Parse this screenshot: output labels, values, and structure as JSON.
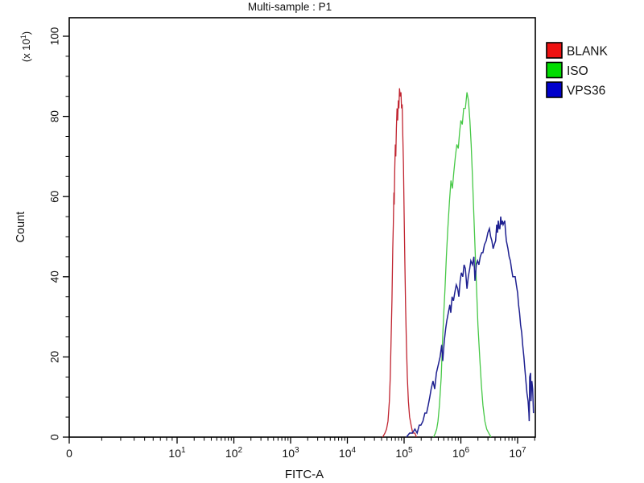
{
  "title": "Multi-sample : P1",
  "chart_data": {
    "type": "line",
    "subtype": "flow-cytometry-overlay-histogram",
    "title": "Multi-sample : P1",
    "xlabel": "FITC-A",
    "ylabel": "Count",
    "y_unit_multiplier": {
      "prefix": "(x 10",
      "exp": "1",
      "suffix": ")"
    },
    "x_scale": "log",
    "ylim": [
      0,
      100
    ],
    "grid": false,
    "legend_position": "outside-top-right",
    "x_ticks": [
      {
        "label": "0",
        "value": 0
      },
      {
        "base": "10",
        "exp": "1",
        "value": 10
      },
      {
        "base": "10",
        "exp": "2",
        "value": 100
      },
      {
        "base": "10",
        "exp": "3",
        "value": 1000
      },
      {
        "base": "10",
        "exp": "4",
        "value": 10000
      },
      {
        "base": "10",
        "exp": "5",
        "value": 100000
      },
      {
        "base": "10",
        "exp": "6",
        "value": 1000000
      },
      {
        "base": "10",
        "exp": "7",
        "value": 10000000
      }
    ],
    "y_ticks": [
      {
        "label": "0",
        "value": 0
      },
      {
        "label": "20",
        "value": 20
      },
      {
        "label": "40",
        "value": 40
      },
      {
        "label": "60",
        "value": 60
      },
      {
        "label": "80",
        "value": 80
      },
      {
        "label": "100",
        "value": 100
      }
    ],
    "legend": [
      {
        "label": "BLANK",
        "color": "#ee1111"
      },
      {
        "label": "ISO",
        "color": "#00dd00"
      },
      {
        "label": "VPS36",
        "color": "#0000cc"
      }
    ],
    "series": [
      {
        "name": "BLANK",
        "color": "#c02430",
        "stroke_width": 1.3,
        "peak": {
          "x": 85000,
          "count": 87
        },
        "points": [
          [
            42000,
            0
          ],
          [
            46000,
            1
          ],
          [
            49000,
            2
          ],
          [
            52000,
            4
          ],
          [
            55000,
            9
          ],
          [
            57000,
            15
          ],
          [
            59000,
            24
          ],
          [
            61000,
            34
          ],
          [
            63000,
            47
          ],
          [
            64500,
            53
          ],
          [
            66000,
            61
          ],
          [
            67000,
            58
          ],
          [
            68500,
            67
          ],
          [
            70000,
            73
          ],
          [
            71500,
            70
          ],
          [
            73000,
            77
          ],
          [
            75000,
            82
          ],
          [
            77000,
            79
          ],
          [
            79000,
            84
          ],
          [
            81000,
            82
          ],
          [
            83000,
            87
          ],
          [
            85500,
            85
          ],
          [
            88000,
            86
          ],
          [
            90000,
            82
          ],
          [
            92500,
            83
          ],
          [
            95000,
            75
          ],
          [
            97500,
            68
          ],
          [
            100000,
            56
          ],
          [
            103000,
            44
          ],
          [
            106000,
            33
          ],
          [
            110000,
            23
          ],
          [
            114000,
            15
          ],
          [
            119000,
            9
          ],
          [
            125000,
            5
          ],
          [
            133000,
            3
          ],
          [
            142000,
            1
          ],
          [
            155000,
            1
          ],
          [
            165000,
            0
          ]
        ]
      },
      {
        "name": "ISO",
        "color": "#46c846",
        "stroke_width": 1.3,
        "peak": {
          "x": 1280000,
          "count": 86
        },
        "points": [
          [
            330000,
            0
          ],
          [
            355000,
            1
          ],
          [
            375000,
            2
          ],
          [
            395000,
            4
          ],
          [
            420000,
            8
          ],
          [
            450000,
            15
          ],
          [
            475000,
            24
          ],
          [
            500000,
            31
          ],
          [
            525000,
            37
          ],
          [
            555000,
            45
          ],
          [
            590000,
            52
          ],
          [
            630000,
            59
          ],
          [
            670000,
            64
          ],
          [
            710000,
            62
          ],
          [
            750000,
            66
          ],
          [
            800000,
            70
          ],
          [
            850000,
            73
          ],
          [
            900000,
            72
          ],
          [
            950000,
            76
          ],
          [
            1000000,
            79
          ],
          [
            1060000,
            78
          ],
          [
            1120000,
            82
          ],
          [
            1200000,
            82
          ],
          [
            1280000,
            86
          ],
          [
            1360000,
            84
          ],
          [
            1440000,
            79
          ],
          [
            1520000,
            73
          ],
          [
            1600000,
            65
          ],
          [
            1700000,
            55
          ],
          [
            1800000,
            45
          ],
          [
            1900000,
            36
          ],
          [
            2000000,
            28
          ],
          [
            2150000,
            20
          ],
          [
            2300000,
            13
          ],
          [
            2450000,
            8
          ],
          [
            2650000,
            4
          ],
          [
            2850000,
            2
          ],
          [
            3100000,
            1
          ],
          [
            3400000,
            0
          ]
        ]
      },
      {
        "name": "VPS36",
        "color": "#1e2090",
        "stroke_width": 1.5,
        "peak": {
          "x": 5030000,
          "count": 55
        },
        "points": [
          [
            110000,
            0
          ],
          [
            125000,
            1
          ],
          [
            140000,
            1
          ],
          [
            155000,
            2
          ],
          [
            170000,
            1
          ],
          [
            185000,
            3
          ],
          [
            198000,
            3
          ],
          [
            215000,
            4
          ],
          [
            232000,
            6
          ],
          [
            249000,
            6
          ],
          [
            266000,
            8
          ],
          [
            283000,
            10
          ],
          [
            300000,
            12
          ],
          [
            323000,
            14
          ],
          [
            346000,
            12
          ],
          [
            370000,
            16
          ],
          [
            400000,
            18
          ],
          [
            430000,
            20
          ],
          [
            460000,
            23
          ],
          [
            480000,
            19
          ],
          [
            510000,
            24
          ],
          [
            540000,
            27
          ],
          [
            565000,
            29
          ],
          [
            600000,
            31
          ],
          [
            640000,
            33
          ],
          [
            665000,
            31
          ],
          [
            700000,
            35
          ],
          [
            740000,
            34
          ],
          [
            780000,
            36
          ],
          [
            830000,
            38
          ],
          [
            880000,
            37
          ],
          [
            922000,
            35
          ],
          [
            970000,
            39
          ],
          [
            1020000,
            41
          ],
          [
            1080000,
            40
          ],
          [
            1140000,
            43
          ],
          [
            1200000,
            42
          ],
          [
            1280000,
            37
          ],
          [
            1350000,
            40
          ],
          [
            1430000,
            42
          ],
          [
            1500000,
            44
          ],
          [
            1600000,
            43
          ],
          [
            1700000,
            45
          ],
          [
            1770000,
            39
          ],
          [
            1870000,
            43
          ],
          [
            1970000,
            44
          ],
          [
            2080000,
            43
          ],
          [
            2200000,
            45
          ],
          [
            2330000,
            46
          ],
          [
            2450000,
            46
          ],
          [
            2600000,
            48
          ],
          [
            2800000,
            49
          ],
          [
            3000000,
            51
          ],
          [
            3190000,
            52
          ],
          [
            3350000,
            50
          ],
          [
            3520000,
            49
          ],
          [
            3700000,
            47
          ],
          [
            3880000,
            48
          ],
          [
            4100000,
            49
          ],
          [
            4280000,
            53
          ],
          [
            4420000,
            51
          ],
          [
            4570000,
            54
          ],
          [
            4720000,
            52
          ],
          [
            4870000,
            52
          ],
          [
            5030000,
            55
          ],
          [
            5200000,
            53
          ],
          [
            5400000,
            54
          ],
          [
            5550000,
            53
          ],
          [
            5930000,
            54
          ],
          [
            6150000,
            51
          ],
          [
            6330000,
            49
          ],
          [
            6750000,
            47
          ],
          [
            7100000,
            45
          ],
          [
            7450000,
            44
          ],
          [
            7800000,
            42
          ],
          [
            8220000,
            40
          ],
          [
            8700000,
            40
          ],
          [
            9060000,
            40
          ],
          [
            9500000,
            38
          ],
          [
            10000000,
            36
          ],
          [
            10400000,
            33
          ],
          [
            10800000,
            31
          ],
          [
            11300000,
            28
          ],
          [
            11800000,
            26
          ],
          [
            12300000,
            23
          ],
          [
            12900000,
            20
          ],
          [
            13400000,
            17
          ],
          [
            14000000,
            14
          ],
          [
            14600000,
            11
          ],
          [
            15300000,
            9
          ],
          [
            15800000,
            6
          ],
          [
            16000000,
            4
          ],
          [
            16300000,
            15
          ],
          [
            16900000,
            16
          ],
          [
            17200000,
            9
          ],
          [
            17800000,
            14
          ],
          [
            18400000,
            12
          ],
          [
            19000000,
            6
          ]
        ]
      }
    ]
  }
}
